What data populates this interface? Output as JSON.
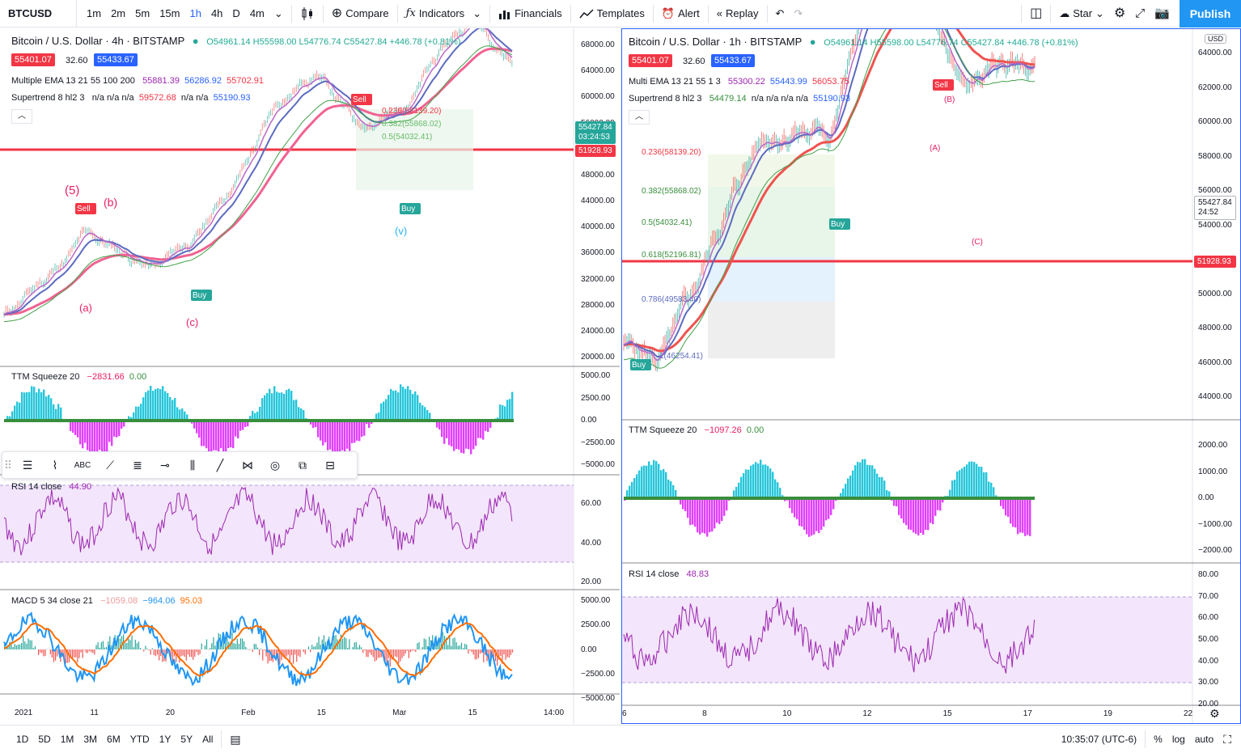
{
  "toolbar": {
    "symbol": "BTCUSD",
    "intervals": [
      "1m",
      "2m",
      "5m",
      "15m",
      "1h",
      "4h",
      "D",
      "4m"
    ],
    "active_interval": "1h",
    "compare": "Compare",
    "indicators": "Indicators",
    "financials": "Financials",
    "templates": "Templates",
    "alert": "Alert",
    "replay": "Replay",
    "star": "Star",
    "publish": "Publish"
  },
  "left_chart": {
    "title": "Bitcoin / U.S. Dollar · 4h · BITSTAMP",
    "ohlc": "O54961.14 H55598.00 L54776.74 C55427.84 +446.78 (+0.81%)",
    "bid": "55401.07",
    "spread": "32.60",
    "ask": "55433.67",
    "ema_label": "Multiple EMA 13 21 55 100 200",
    "ema_values": [
      "55881.39",
      "56286.92",
      "55702.91"
    ],
    "supertrend_label": "Supertrend 8 hl2 3",
    "supertrend_values": "n/a n/a n/a",
    "supertrend_v1": "59572.68",
    "supertrend_values2": "n/a n/a",
    "supertrend_v2": "55190.93",
    "price_axis": [
      "68000.00",
      "64000.00",
      "60000.00",
      "56000.00",
      "52000.00",
      "48000.00",
      "44000.00",
      "40000.00",
      "36000.00",
      "32000.00",
      "28000.00",
      "24000.00",
      "20000.00"
    ],
    "last_price": "55427.84",
    "countdown": "03:24:53",
    "hline_price": "51928.93",
    "fib_labels": [
      "0.236(58139.20)",
      "0.382(55868.02)",
      "0.5(54032.41)"
    ],
    "ttm_label": "TTM Squeeze 20",
    "ttm_v1": "−2831.66",
    "ttm_v2": "0.00",
    "ttm_axis": [
      "5000.00",
      "2500.00",
      "0.00",
      "−2500.00",
      "−5000.00"
    ],
    "rsi_label": "RSI 14 close",
    "rsi_value": "44.90",
    "rsi_axis": [
      "60.00",
      "40.00",
      "20.00"
    ],
    "macd_label": "MACD 5 34 close 21",
    "macd_v1": "−1059.08",
    "macd_v2": "−964.06",
    "macd_v3": "95.03",
    "macd_axis": [
      "5000.00",
      "2500.00",
      "0.00",
      "−2500.00",
      "−5000.00"
    ],
    "time_axis": [
      "2021",
      "11",
      "20",
      "Feb",
      "15",
      "Mar",
      "15",
      "14:00"
    ],
    "wave_labels": [
      "(5)",
      "(b)",
      "(a)",
      "(c)",
      "Sell",
      "Buy",
      "Sell",
      "Buy",
      "(v)"
    ]
  },
  "right_chart": {
    "title": "Bitcoin / U.S. Dollar · 1h · BITSTAMP",
    "ohlc": "O54961.14 H55598.00 L54776.74 C55427.84 +446.78 (+0.81%)",
    "bid": "55401.07",
    "spread": "32.60",
    "ask": "55433.67",
    "ema_label": "Multi EMA 13 21 55 1 3",
    "ema_values": [
      "55300.22",
      "55443.99",
      "56053.75"
    ],
    "supertrend_label": "Supertrend 8 hl2 3",
    "supertrend_v0": "54479.14",
    "supertrend_values": "n/a n/a n/a n/a",
    "supertrend_v1": "55190.93",
    "currency": "USD",
    "price_axis": [
      "64000.00",
      "62000.00",
      "60000.00",
      "58000.00",
      "56000.00",
      "54000.00",
      "52000.00",
      "50000.00",
      "48000.00",
      "46000.00",
      "44000.00"
    ],
    "last_price": "55427.84",
    "countdown": "24:52",
    "hline_price": "51928.93",
    "fib_labels": [
      "0.236(58139.20)",
      "0.382(55868.02)",
      "0.5(54032.41)",
      "0.618(52196.81)",
      "0.786(49583.40)",
      "1(46254.41)"
    ],
    "ttm_label": "TTM Squeeze 20",
    "ttm_v1": "−1097.26",
    "ttm_v2": "0.00",
    "ttm_axis": [
      "2000.00",
      "1000.00",
      "0.00",
      "−1000.00",
      "−2000.00"
    ],
    "rsi_label": "RSI 14 close",
    "rsi_value": "48.83",
    "rsi_axis": [
      "80.00",
      "70.00",
      "60.00",
      "50.00",
      "40.00",
      "30.00",
      "20.00"
    ],
    "time_axis": [
      "6",
      "8",
      "10",
      "12",
      "15",
      "17",
      "19",
      "22"
    ],
    "wave_labels": [
      "Sell",
      "Buy",
      "Buy",
      "(A)",
      "(B)",
      "(C)"
    ]
  },
  "bottom": {
    "ranges": [
      "1D",
      "5D",
      "1M",
      "3M",
      "6M",
      "YTD",
      "1Y",
      "5Y",
      "All"
    ],
    "clock": "10:35:07 (UTC-6)",
    "percent": "%",
    "log": "log",
    "auto": "auto"
  },
  "colors": {
    "accent": "#2962ff",
    "publish": "#2196f3",
    "red_line": "#f23645",
    "bid_tag": "#f23645",
    "ask_tag": "#2962ff",
    "rsi_band": "#f3e5fb",
    "rsi_line": "#9c27b0"
  }
}
